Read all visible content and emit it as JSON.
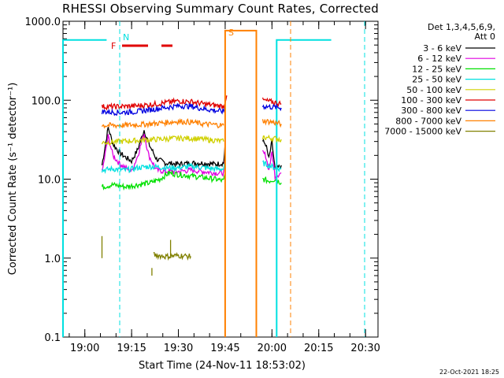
{
  "page": {
    "title": "RHESSI Observing Summary Count Rates, Corrected",
    "footer": "22-Oct-2021 18:25"
  },
  "chart_data": {
    "type": "line",
    "title": "RHESSI Observing Summary Count Rates, Corrected",
    "xlabel": "Start Time (24-Nov-11 18:53:02)",
    "ylabel": "Corrected Count Rate (s⁻¹ detector⁻¹)",
    "x_unit": "minutes from 18:53:02",
    "xlim": [
      0,
      101
    ],
    "xticks": [
      {
        "t": 7,
        "label": "19:00"
      },
      {
        "t": 22,
        "label": "19:15"
      },
      {
        "t": 37,
        "label": "19:30"
      },
      {
        "t": 52,
        "label": "19:45"
      },
      {
        "t": 67,
        "label": "20:00"
      },
      {
        "t": 82,
        "label": "20:15"
      },
      {
        "t": 97,
        "label": "20:30"
      }
    ],
    "yscale": "log",
    "ylim": [
      0.1,
      1000
    ],
    "yticks": [
      {
        "v": 0.1,
        "label": "0.1"
      },
      {
        "v": 1,
        "label": "1.0"
      },
      {
        "v": 10,
        "label": "10.0"
      },
      {
        "v": 100,
        "label": "100.0"
      },
      {
        "v": 1000,
        "label": "1000.0"
      }
    ],
    "legend": {
      "placement": "right",
      "header": [
        "Det 1,3,4,5,6,9,",
        "Att 0"
      ],
      "entries": [
        {
          "label": "3 - 6 keV",
          "color": "#000000"
        },
        {
          "label": "6 - 12 keV",
          "color": "#e000e0"
        },
        {
          "label": "12 - 25 keV",
          "color": "#00e000"
        },
        {
          "label": "25 - 50 keV",
          "color": "#00e0e0"
        },
        {
          "label": "50 - 100 keV",
          "color": "#d0d000"
        },
        {
          "label": "100 - 300 keV",
          "color": "#e00000"
        },
        {
          "label": "300 - 800 keV",
          "color": "#0000e0"
        },
        {
          "label": "800 - 7000 keV",
          "color": "#ff8000"
        },
        {
          "label": "7000 - 15000 keV",
          "color": "#808000"
        }
      ]
    },
    "flags": [
      {
        "label": "N",
        "color": "#00e0e0"
      },
      {
        "label": "F",
        "color": "#e00000"
      },
      {
        "label": "S",
        "color": "#ff8000"
      }
    ],
    "series": [
      {
        "name": "3 - 6 keV",
        "color": "#000000",
        "segments": [
          [
            [
              12.5,
              15
            ],
            [
              14.5,
              45
            ],
            [
              16,
              28
            ],
            [
              18,
              22
            ],
            [
              20,
              19
            ],
            [
              22,
              17
            ],
            [
              24,
              24
            ],
            [
              26,
              42
            ],
            [
              27.5,
              28
            ],
            [
              30,
              18
            ],
            [
              33,
              16
            ],
            [
              37,
              15.5
            ],
            [
              41,
              16
            ],
            [
              45,
              16
            ],
            [
              49,
              15.5
            ],
            [
              51.5,
              16
            ],
            [
              52,
              28
            ]
          ],
          [
            [
              64,
              30
            ],
            [
              65,
              28
            ],
            [
              66,
              18
            ],
            [
              67,
              30
            ],
            [
              68,
              13
            ],
            [
              70,
              15
            ]
          ]
        ]
      },
      {
        "name": "6 - 12 keV",
        "color": "#e000e0",
        "segments": [
          [
            [
              12.5,
              12
            ],
            [
              14.5,
              35
            ],
            [
              16,
              20
            ],
            [
              18,
              16
            ],
            [
              20,
              14
            ],
            [
              22,
              12.5
            ],
            [
              24,
              20
            ],
            [
              26,
              38
            ],
            [
              27.5,
              20
            ],
            [
              30,
              13
            ],
            [
              33,
              12.5
            ],
            [
              37,
              12.5
            ],
            [
              41,
              13
            ],
            [
              45,
              12.5
            ],
            [
              49,
              12
            ],
            [
              51.5,
              12
            ],
            [
              52,
              18
            ]
          ],
          [
            [
              64,
              22
            ],
            [
              65,
              20
            ],
            [
              66,
              13
            ],
            [
              67,
              22
            ],
            [
              68,
              11
            ],
            [
              70,
              12
            ]
          ]
        ]
      },
      {
        "name": "12 - 25 keV",
        "color": "#00e000",
        "segments": [
          [
            [
              12.5,
              8
            ],
            [
              16,
              8.5
            ],
            [
              20,
              8
            ],
            [
              24,
              8.5
            ],
            [
              28,
              9
            ],
            [
              31,
              10
            ],
            [
              34,
              12
            ],
            [
              37,
              11.5
            ],
            [
              41,
              11
            ],
            [
              45,
              10.5
            ],
            [
              49,
              10
            ],
            [
              51.5,
              9.5
            ],
            [
              52,
              12
            ]
          ],
          [
            [
              64,
              10
            ],
            [
              66,
              9.5
            ],
            [
              68,
              10
            ],
            [
              70,
              9
            ]
          ]
        ]
      },
      {
        "name": "25 - 50 keV",
        "color": "#00e0e0",
        "segments": [
          [
            [
              0,
              0.1
            ],
            [
              0,
              580
            ],
            [
              14,
              580
            ]
          ],
          [
            [
              12.5,
              13
            ],
            [
              16,
              13.5
            ],
            [
              20,
              13
            ],
            [
              24,
              14
            ],
            [
              28,
              14.5
            ],
            [
              33,
              14
            ],
            [
              37,
              14
            ],
            [
              41,
              14.5
            ],
            [
              45,
              14
            ],
            [
              49,
              13.5
            ],
            [
              51.5,
              13.5
            ],
            [
              52,
              16
            ]
          ],
          [
            [
              64,
              16
            ],
            [
              66,
              15
            ],
            [
              68,
              14
            ],
            [
              70,
              13.5
            ]
          ],
          [
            [
              68.5,
              0.1
            ],
            [
              68.5,
              580
            ],
            [
              86,
              580
            ]
          ]
        ]
      },
      {
        "name": "50 - 100 keV",
        "color": "#d0d000",
        "segments": [
          [
            [
              12.5,
              29
            ],
            [
              18,
              30
            ],
            [
              24,
              31
            ],
            [
              30,
              32
            ],
            [
              37,
              33
            ],
            [
              41,
              33
            ],
            [
              45,
              32
            ],
            [
              49,
              31
            ],
            [
              51.5,
              30
            ]
          ],
          [
            [
              64,
              34
            ],
            [
              67,
              33
            ],
            [
              70,
              32
            ]
          ]
        ]
      },
      {
        "name": "100 - 300 keV",
        "color": "#e00000",
        "segments": [
          [
            [
              12.5,
              83
            ],
            [
              18,
              83
            ],
            [
              24,
              85
            ],
            [
              30,
              90
            ],
            [
              37,
              98
            ],
            [
              41,
              96
            ],
            [
              45,
              90
            ],
            [
              49,
              86
            ],
            [
              51.5,
              84
            ],
            [
              52.5,
              115
            ]
          ],
          [
            [
              64,
              100
            ],
            [
              67,
              95
            ],
            [
              70,
              90
            ]
          ]
        ]
      },
      {
        "name": "300 - 800 keV",
        "color": "#0000e0",
        "segments": [
          [
            [
              12.5,
              72
            ],
            [
              18,
              70
            ],
            [
              24,
              72
            ],
            [
              30,
              78
            ],
            [
              37,
              85
            ],
            [
              41,
              84
            ],
            [
              45,
              78
            ],
            [
              49,
              74
            ],
            [
              51.5,
              72
            ],
            [
              52,
              86
            ]
          ],
          [
            [
              64,
              84
            ],
            [
              67,
              82
            ],
            [
              70,
              80
            ]
          ]
        ]
      },
      {
        "name": "800 - 7000 keV",
        "color": "#ff8000",
        "segments": [
          [
            [
              12.5,
              48
            ],
            [
              18,
              48
            ],
            [
              24,
              49
            ],
            [
              30,
              51
            ],
            [
              37,
              54
            ],
            [
              41,
              53
            ],
            [
              45,
              50
            ],
            [
              49,
              49
            ],
            [
              51.5,
              48
            ]
          ],
          [
            [
              64,
              55
            ],
            [
              67,
              53
            ],
            [
              70,
              50
            ]
          ],
          [
            [
              52,
              0.1
            ],
            [
              52,
              760
            ],
            [
              62,
              760
            ],
            [
              62,
              0.1
            ]
          ]
        ]
      },
      {
        "name": "7000 - 15000 keV",
        "color": "#808000",
        "segments": [
          [
            [
              29,
              1.1
            ],
            [
              33,
              1.05
            ],
            [
              37,
              1.08
            ],
            [
              41,
              1.05
            ]
          ],
          [
            [
              34.5,
              1.0
            ],
            [
              34.5,
              1.7
            ]
          ],
          [
            [
              28.5,
              0.6
            ],
            [
              28.5,
              0.75
            ]
          ],
          [
            [
              12.5,
              1.0
            ],
            [
              12.5,
              1.9
            ]
          ]
        ]
      }
    ]
  }
}
